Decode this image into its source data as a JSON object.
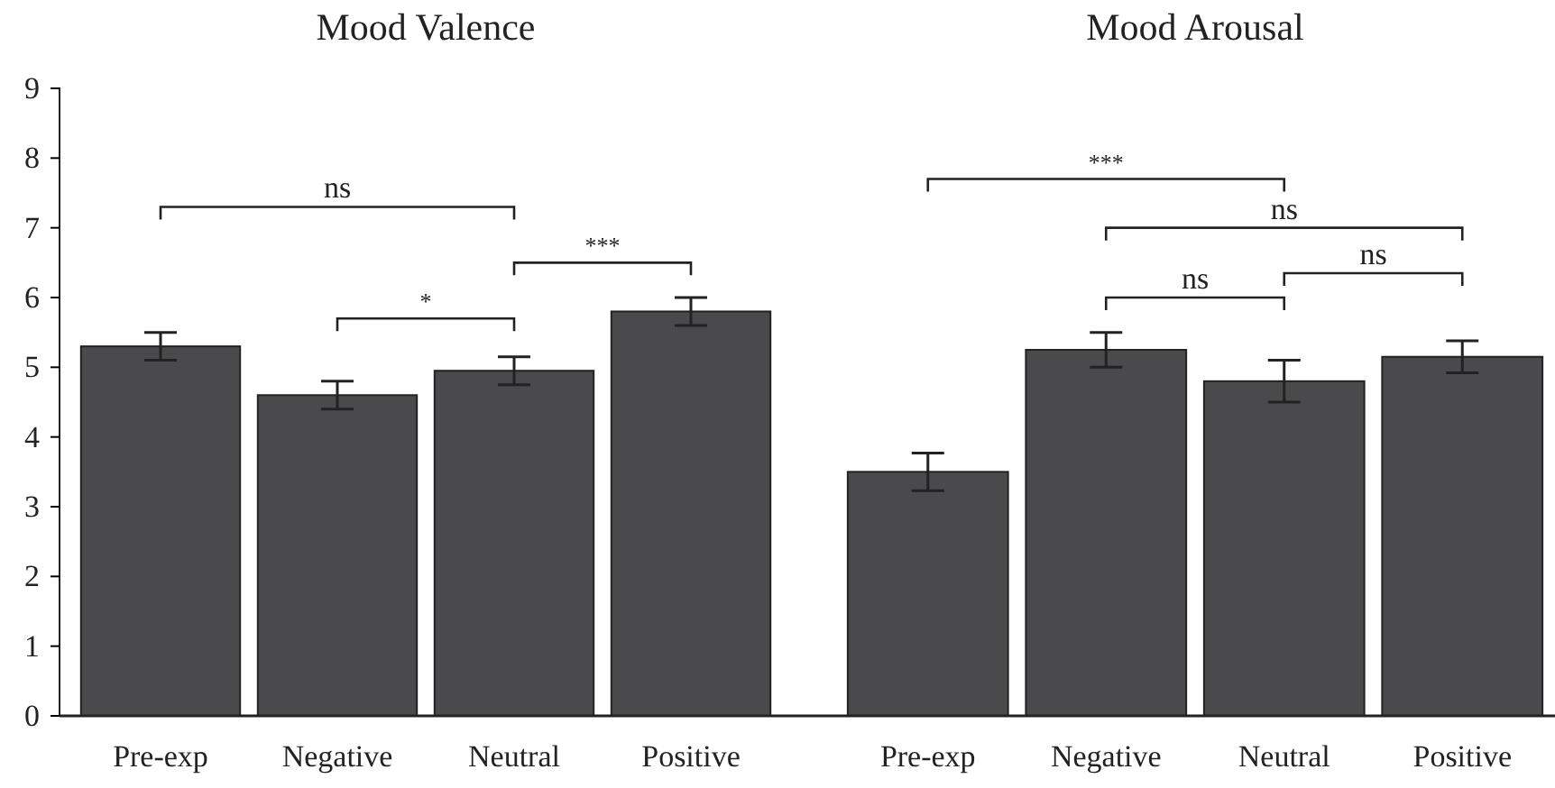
{
  "chart_data": [
    {
      "type": "bar",
      "title": "Mood Valence",
      "categories": [
        "Pre-exp",
        "Negative",
        "Neutral",
        "Positive"
      ],
      "values": [
        5.3,
        4.6,
        4.95,
        5.8
      ],
      "errors": [
        0.2,
        0.2,
        0.2,
        0.2
      ],
      "color": "#4a4a4c",
      "ylim": [
        0,
        9
      ],
      "yticks": [
        0,
        1,
        2,
        3,
        4,
        5,
        6,
        7,
        8,
        9
      ],
      "annotations": [
        "ns",
        "*",
        "***"
      ]
    },
    {
      "type": "bar",
      "title": "Mood Arousal",
      "categories": [
        "Pre-exp",
        "Negative",
        "Neutral",
        "Positive"
      ],
      "values": [
        3.5,
        5.25,
        4.8,
        5.15
      ],
      "errors": [
        0.27,
        0.25,
        0.3,
        0.23
      ],
      "color": "#4a4a4c",
      "ylim": [
        0,
        9
      ],
      "tick_labels": "x",
      "annotations": [
        "***",
        "ns",
        "ns",
        "ns"
      ]
    }
  ]
}
